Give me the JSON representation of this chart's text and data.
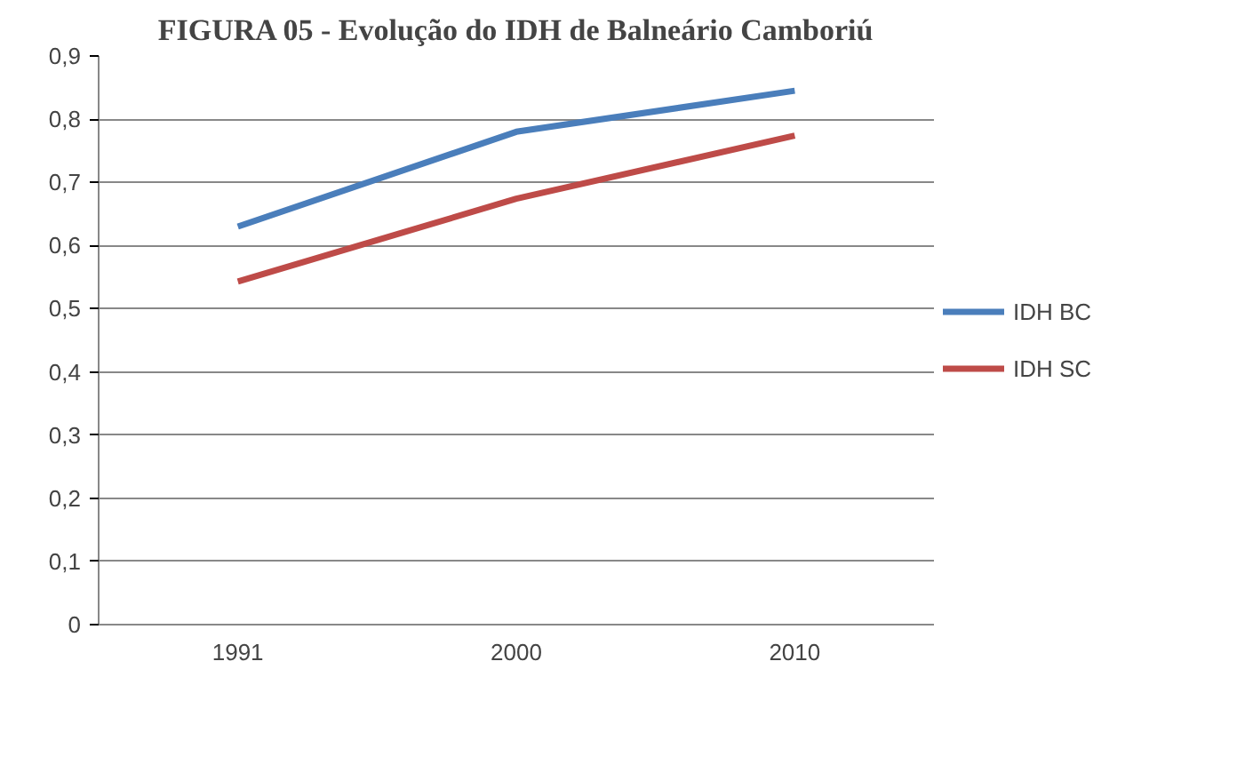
{
  "chart_data": {
    "type": "line",
    "title": "FIGURA 05 - Evolução do IDH de Balneário Camboriú",
    "categories": [
      "1991",
      "2000",
      "2010"
    ],
    "series": [
      {
        "name": "IDH BC",
        "color": "#4a7ebb",
        "values": [
          0.63,
          0.78,
          0.845
        ]
      },
      {
        "name": "IDH SC",
        "color": "#be4b48",
        "values": [
          0.543,
          0.674,
          0.774
        ]
      }
    ],
    "ylim": [
      0,
      0.9
    ],
    "yticks": [
      {
        "value": 0,
        "label": "0"
      },
      {
        "value": 0.1,
        "label": "0,1"
      },
      {
        "value": 0.2,
        "label": "0,2"
      },
      {
        "value": 0.3,
        "label": "0,3"
      },
      {
        "value": 0.4,
        "label": "0,4"
      },
      {
        "value": 0.5,
        "label": "0,5"
      },
      {
        "value": 0.6,
        "label": "0,6"
      },
      {
        "value": 0.7,
        "label": "0,7"
      },
      {
        "value": 0.8,
        "label": "0,8"
      },
      {
        "value": 0.9,
        "label": "0,9"
      }
    ],
    "grid": "y",
    "legend": "right",
    "marker": "none",
    "line_style": "solid"
  }
}
